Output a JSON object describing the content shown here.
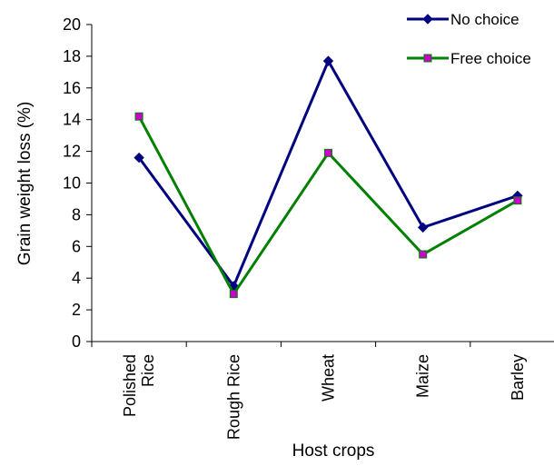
{
  "chart_data": {
    "type": "line",
    "xlabel": "Host crops",
    "ylabel": "Grain weight loss (%)",
    "ylim": [
      0,
      20
    ],
    "yticks": [
      0,
      2,
      4,
      6,
      8,
      10,
      12,
      14,
      16,
      18,
      20
    ],
    "categories": [
      [
        "Polished",
        "Rice"
      ],
      [
        "Rough Rice"
      ],
      [
        "Wheat"
      ],
      [
        "Maize"
      ],
      [
        "Barley"
      ]
    ],
    "series": [
      {
        "name": "No choice",
        "color": "#000080",
        "marker": "diamond",
        "marker_color": "#000080",
        "values": [
          11.6,
          3.5,
          17.7,
          7.2,
          9.2
        ]
      },
      {
        "name": "Free choice",
        "color": "#008000",
        "marker": "square",
        "marker_color": "#CC00CC",
        "values": [
          14.2,
          3.0,
          11.9,
          5.5,
          8.9
        ]
      }
    ],
    "grid": false,
    "legend_position": "top-right"
  }
}
